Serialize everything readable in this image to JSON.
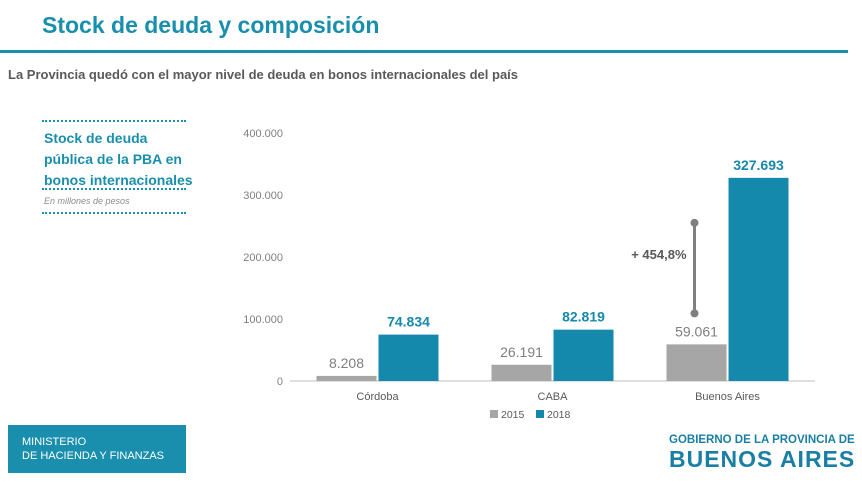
{
  "slide": {
    "title": "Stock de deuda y composición",
    "subtitle": "La Provincia quedó con el mayor nivel de deuda en bonos internacionales del país"
  },
  "side_panel": {
    "title_lines": [
      "Stock de deuda",
      "pública de la PBA en",
      "bonos internacionales"
    ],
    "note": "En millones de pesos"
  },
  "footer": {
    "ministry_lines": [
      "MINISTERIO",
      "DE HACIENDA Y FINANZAS"
    ],
    "logo_top": "GOBIERNO DE LA PROVINCIA DE",
    "logo_main": "BUENOS AIRES"
  },
  "colors": {
    "accent": "#1a8fad",
    "series_2015": "#a6a6a6",
    "series_2018": "#1589ab",
    "text_gray": "#595959"
  },
  "chart_data": {
    "type": "bar",
    "categories": [
      "Córdoba",
      "CABA",
      "Buenos Aires"
    ],
    "series": [
      {
        "name": "2015",
        "values": [
          8208,
          26191,
          59061
        ],
        "labels": [
          "8.208",
          "26.191",
          "59.061"
        ]
      },
      {
        "name": "2018",
        "values": [
          74834,
          82819,
          327693
        ],
        "labels": [
          "74.834",
          "82.819",
          "327.693"
        ]
      }
    ],
    "ylim": [
      0,
      400000
    ],
    "yticks": [
      0,
      100000,
      200000,
      300000,
      400000
    ],
    "ytick_labels": [
      "0",
      "100.000",
      "200.000",
      "300.000",
      "400.000"
    ],
    "annotation": {
      "text": "+ 454,8%",
      "category": "Buenos Aires",
      "from": 59061,
      "to": 327693
    },
    "legend_position": "bottom",
    "grid": false
  }
}
